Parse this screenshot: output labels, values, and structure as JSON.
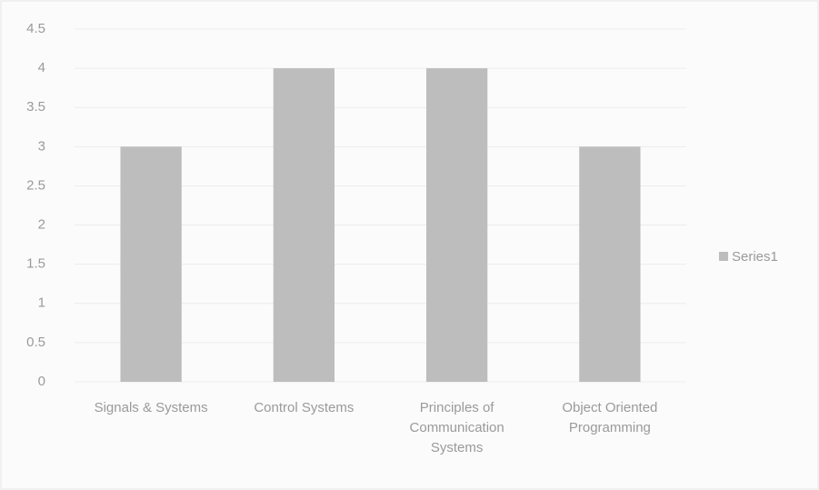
{
  "chart_data": {
    "type": "bar",
    "categories": [
      "Signals & Systems",
      "Control Systems",
      "Principles of Communication Systems",
      "Object Oriented Programming"
    ],
    "series": [
      {
        "name": "Series1",
        "color": "#bdbdbd",
        "values": [
          3,
          4,
          4,
          3
        ]
      }
    ],
    "ylim": [
      0,
      4.5
    ],
    "yticks": [
      0,
      0.5,
      1,
      1.5,
      2,
      2.5,
      3,
      3.5,
      4,
      4.5
    ],
    "grid": true,
    "legend": "right"
  }
}
